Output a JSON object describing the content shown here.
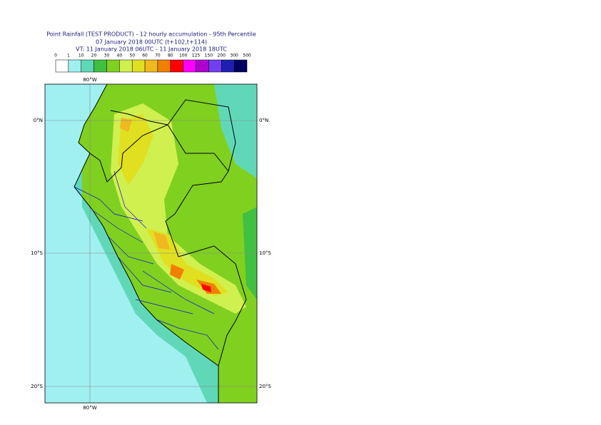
{
  "header": {
    "title": "Point Rainfall (TEST PRODUCT) - 12 hourly accumulation - 95th Percentile",
    "subtitle": "07 January 2018 00UTC (t+102,t+114)",
    "valid_time": "VT: 11 January 2018 06UTC - 11 January 2018 18UTC"
  },
  "legend": {
    "labels": [
      0,
      1,
      10,
      20,
      30,
      40,
      50,
      60,
      70,
      80,
      100,
      125,
      150,
      200,
      300,
      500
    ],
    "colors": [
      "#ffffff",
      "#a0f0f0",
      "#60d8b8",
      "#40c040",
      "#80d020",
      "#d0f050",
      "#e0e020",
      "#f0b820",
      "#f08000",
      "#ff0000",
      "#ff00ff",
      "#b000d0",
      "#7040f0",
      "#2020b0",
      "#000060"
    ]
  },
  "map": {
    "lon_labels": [
      "80°W"
    ],
    "lat_labels": [
      "0°N",
      "10°S",
      "20°S"
    ]
  }
}
